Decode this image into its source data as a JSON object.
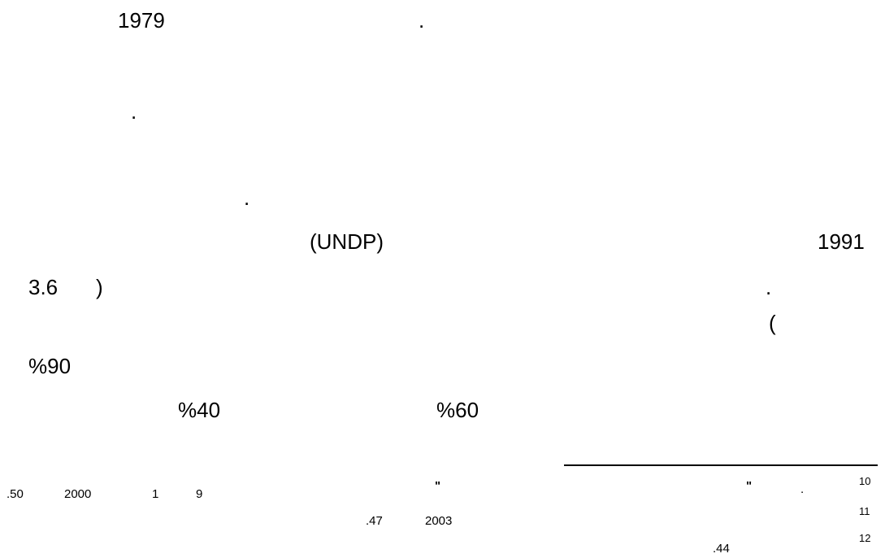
{
  "body": {
    "line1_year": "1979",
    "line1_dot": ".",
    "line2_dot": ".",
    "line3_dot": ".",
    "line4_undp": "(UNDP)",
    "line4_year": "1991",
    "line5_value": "3.6",
    "line5_paren": ")",
    "line5_dot": ".",
    "line6_paren": "(",
    "line7_percent": "%90",
    "line8_percent_left": "%40",
    "line8_percent_right": "%60"
  },
  "footnotes": {
    "fn10": {
      "number": "10",
      "quote_mark": "\"",
      "dot": "."
    },
    "fn10_continued": {
      "quote_mark": "\"",
      "day": "9",
      "month": "1",
      "year": "2000",
      "page": ".50"
    },
    "fn11": {
      "number": "11",
      "year": "2003",
      "page": ".47"
    },
    "fn12": {
      "number": "12",
      "page": ".44"
    }
  }
}
